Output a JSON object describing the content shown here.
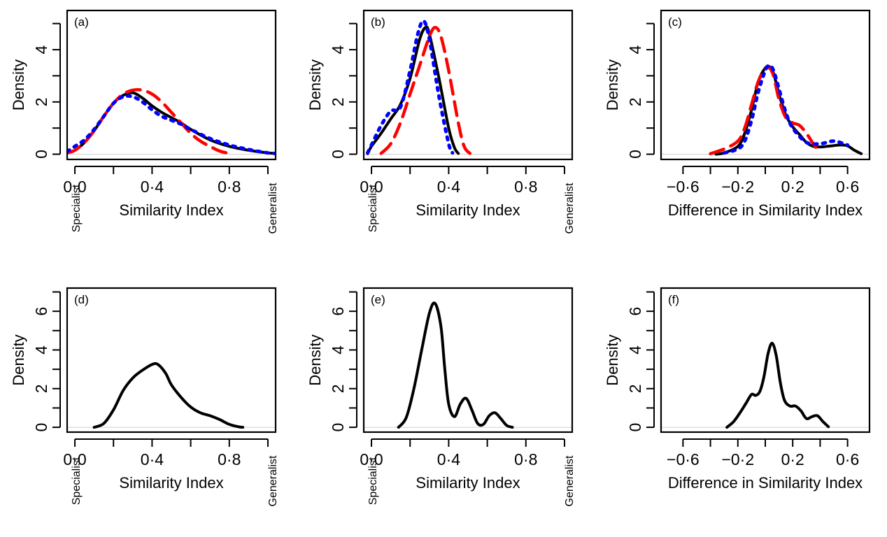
{
  "figure": {
    "background": "#ffffff"
  },
  "chart_data": [
    {
      "type": "line",
      "panel": "(a)",
      "xlabel": "Similarity Index",
      "ylabel": "Density",
      "left_end_label": "Specialist",
      "right_end_label": "Generalist",
      "xlim": [
        -0.04,
        1.04
      ],
      "ylim": [
        -0.2,
        5.5
      ],
      "x_ticks": [
        0.0,
        0.2,
        0.4,
        0.6,
        0.8,
        1.0
      ],
      "x_tick_labels": [
        "0·0",
        "",
        "0·4",
        "",
        "0·8",
        ""
      ],
      "y_ticks": [
        0,
        1,
        2,
        3,
        4,
        5
      ],
      "y_tick_labels": [
        "0",
        "",
        "2",
        "",
        "4",
        ""
      ],
      "series": [
        {
          "color": "#000000",
          "style": "solid",
          "x": [
            -0.04,
            0.0,
            0.05,
            0.1,
            0.15,
            0.2,
            0.25,
            0.3,
            0.35,
            0.4,
            0.45,
            0.5,
            0.55,
            0.6,
            0.7,
            0.8,
            0.9,
            1.0,
            1.04
          ],
          "y": [
            0.05,
            0.15,
            0.45,
            0.9,
            1.45,
            1.95,
            2.25,
            2.35,
            2.15,
            1.85,
            1.6,
            1.4,
            1.2,
            0.95,
            0.55,
            0.3,
            0.15,
            0.05,
            0.03
          ]
        },
        {
          "color": "#ff0000",
          "style": "dashed",
          "x": [
            -0.04,
            0.0,
            0.05,
            0.1,
            0.15,
            0.2,
            0.25,
            0.3,
            0.35,
            0.4,
            0.45,
            0.5,
            0.55,
            0.6,
            0.65,
            0.7,
            0.75,
            0.8
          ],
          "y": [
            0.05,
            0.15,
            0.45,
            0.9,
            1.45,
            1.95,
            2.3,
            2.45,
            2.45,
            2.3,
            2.0,
            1.6,
            1.2,
            0.8,
            0.5,
            0.3,
            0.12,
            0.03
          ]
        },
        {
          "color": "#0000ff",
          "style": "dotted",
          "x": [
            -0.04,
            0.0,
            0.05,
            0.1,
            0.15,
            0.2,
            0.25,
            0.3,
            0.35,
            0.4,
            0.45,
            0.5,
            0.55,
            0.6,
            0.7,
            0.8,
            0.9,
            1.0,
            1.04
          ],
          "y": [
            0.1,
            0.3,
            0.55,
            0.95,
            1.45,
            1.95,
            2.2,
            2.2,
            2.0,
            1.7,
            1.45,
            1.3,
            1.15,
            0.95,
            0.6,
            0.35,
            0.18,
            0.05,
            0.03
          ]
        }
      ]
    },
    {
      "type": "line",
      "panel": "(b)",
      "xlabel": "Similarity Index",
      "ylabel": "Density",
      "left_end_label": "Specialist",
      "right_end_label": "Generalist",
      "xlim": [
        -0.04,
        1.04
      ],
      "ylim": [
        -0.2,
        5.5
      ],
      "x_ticks": [
        0.0,
        0.2,
        0.4,
        0.6,
        0.8,
        1.0
      ],
      "x_tick_labels": [
        "0·0",
        "",
        "0·4",
        "",
        "0·8",
        ""
      ],
      "y_ticks": [
        0,
        1,
        2,
        3,
        4,
        5
      ],
      "y_tick_labels": [
        "0",
        "",
        "2",
        "",
        "4",
        ""
      ],
      "series": [
        {
          "color": "#000000",
          "style": "solid",
          "x": [
            -0.02,
            0.0,
            0.05,
            0.1,
            0.15,
            0.2,
            0.25,
            0.28,
            0.3,
            0.35,
            0.4,
            0.43,
            0.45
          ],
          "y": [
            0.02,
            0.3,
            0.8,
            1.35,
            1.9,
            2.9,
            4.4,
            4.85,
            4.6,
            2.9,
            1.0,
            0.25,
            0.03
          ]
        },
        {
          "color": "#ff0000",
          "style": "dashed",
          "x": [
            0.05,
            0.1,
            0.15,
            0.2,
            0.25,
            0.3,
            0.33,
            0.36,
            0.4,
            0.45,
            0.48,
            0.51
          ],
          "y": [
            0.03,
            0.4,
            1.2,
            2.3,
            3.4,
            4.5,
            4.85,
            4.5,
            3.2,
            1.2,
            0.3,
            0.03
          ]
        },
        {
          "color": "#0000ff",
          "style": "dotted",
          "x": [
            -0.02,
            0.0,
            0.05,
            0.1,
            0.15,
            0.2,
            0.24,
            0.27,
            0.3,
            0.35,
            0.4,
            0.42
          ],
          "y": [
            0.05,
            0.35,
            1.1,
            1.65,
            1.8,
            3.2,
            4.6,
            5.1,
            4.4,
            2.2,
            0.4,
            0.05
          ]
        }
      ]
    },
    {
      "type": "line",
      "panel": "(c)",
      "xlabel": "Difference in Similarity Index",
      "ylabel": "Density",
      "xlim": [
        -0.76,
        0.76
      ],
      "ylim": [
        -0.2,
        5.5
      ],
      "x_ticks": [
        -0.6,
        -0.4,
        -0.2,
        0.0,
        0.2,
        0.4,
        0.6
      ],
      "x_tick_labels": [
        "−0·6",
        "",
        "−0·2",
        "",
        "0·2",
        "",
        "0·6"
      ],
      "y_ticks": [
        0,
        1,
        2,
        3,
        4,
        5
      ],
      "y_tick_labels": [
        "0",
        "",
        "2",
        "",
        "4",
        ""
      ],
      "series": [
        {
          "color": "#000000",
          "style": "solid",
          "x": [
            -0.36,
            -0.3,
            -0.2,
            -0.15,
            -0.1,
            -0.05,
            0.0,
            0.03,
            0.06,
            0.1,
            0.15,
            0.2,
            0.25,
            0.3,
            0.35,
            0.4,
            0.45,
            0.5,
            0.55,
            0.6,
            0.65,
            0.7
          ],
          "y": [
            0.0,
            0.05,
            0.3,
            0.8,
            1.7,
            2.8,
            3.3,
            3.35,
            3.1,
            2.3,
            1.5,
            1.05,
            0.75,
            0.45,
            0.3,
            0.28,
            0.3,
            0.33,
            0.35,
            0.32,
            0.15,
            0.02
          ]
        },
        {
          "color": "#ff0000",
          "style": "dashed",
          "x": [
            -0.4,
            -0.3,
            -0.2,
            -0.15,
            -0.1,
            -0.05,
            0.0,
            0.03,
            0.06,
            0.1,
            0.15,
            0.2,
            0.25,
            0.3,
            0.35,
            0.4
          ],
          "y": [
            0.02,
            0.2,
            0.5,
            1.0,
            1.9,
            2.8,
            3.25,
            3.3,
            3.0,
            2.1,
            1.4,
            1.2,
            1.1,
            0.8,
            0.4,
            0.05
          ]
        },
        {
          "color": "#0000ff",
          "style": "dotted",
          "x": [
            -0.3,
            -0.2,
            -0.15,
            -0.1,
            -0.05,
            0.0,
            0.03,
            0.06,
            0.1,
            0.15,
            0.2,
            0.3,
            0.4,
            0.5,
            0.6
          ],
          "y": [
            0.05,
            0.2,
            0.5,
            1.3,
            2.4,
            3.2,
            3.4,
            3.2,
            2.5,
            1.6,
            1.0,
            0.45,
            0.4,
            0.5,
            0.35
          ]
        }
      ]
    },
    {
      "type": "line",
      "panel": "(d)",
      "xlabel": "Similarity Index",
      "ylabel": "Density",
      "left_end_label": "Specialist",
      "right_end_label": "Generalist",
      "xlim": [
        -0.04,
        1.04
      ],
      "ylim": [
        -0.25,
        7.2
      ],
      "x_ticks": [
        0.0,
        0.2,
        0.4,
        0.6,
        0.8,
        1.0
      ],
      "x_tick_labels": [
        "0·0",
        "",
        "0·4",
        "",
        "0·8",
        ""
      ],
      "y_ticks": [
        0,
        1,
        2,
        3,
        4,
        5,
        6,
        7
      ],
      "y_tick_labels": [
        "0",
        "",
        "2",
        "",
        "4",
        "",
        "6",
        ""
      ],
      "series": [
        {
          "color": "#000000",
          "style": "solid",
          "x": [
            0.1,
            0.15,
            0.2,
            0.25,
            0.3,
            0.35,
            0.4,
            0.43,
            0.47,
            0.5,
            0.55,
            0.6,
            0.65,
            0.7,
            0.75,
            0.8,
            0.85,
            0.87
          ],
          "y": [
            0.0,
            0.2,
            0.9,
            1.9,
            2.55,
            2.95,
            3.25,
            3.25,
            2.8,
            2.2,
            1.55,
            1.05,
            0.75,
            0.6,
            0.4,
            0.15,
            0.02,
            0.0
          ]
        }
      ]
    },
    {
      "type": "line",
      "panel": "(e)",
      "xlabel": "Similarity Index",
      "ylabel": "Density",
      "left_end_label": "Specialist",
      "right_end_label": "Generalist",
      "xlim": [
        -0.04,
        1.04
      ],
      "ylim": [
        -0.25,
        7.2
      ],
      "x_ticks": [
        0.0,
        0.2,
        0.4,
        0.6,
        0.8,
        1.0
      ],
      "x_tick_labels": [
        "0·0",
        "",
        "0·4",
        "",
        "0·8",
        ""
      ],
      "y_ticks": [
        0,
        1,
        2,
        3,
        4,
        5,
        6,
        7
      ],
      "y_tick_labels": [
        "0",
        "",
        "2",
        "",
        "4",
        "",
        "6",
        ""
      ],
      "series": [
        {
          "color": "#000000",
          "style": "solid",
          "x": [
            0.14,
            0.18,
            0.22,
            0.26,
            0.3,
            0.33,
            0.36,
            0.38,
            0.4,
            0.43,
            0.46,
            0.49,
            0.52,
            0.55,
            0.58,
            0.61,
            0.64,
            0.67,
            0.7,
            0.73
          ],
          "y": [
            0.0,
            0.5,
            2.0,
            4.0,
            5.9,
            6.4,
            5.2,
            3.0,
            1.2,
            0.55,
            1.2,
            1.5,
            0.9,
            0.2,
            0.15,
            0.6,
            0.75,
            0.45,
            0.1,
            0.0
          ]
        }
      ]
    },
    {
      "type": "line",
      "panel": "(f)",
      "xlabel": "Difference in Similarity Index",
      "ylabel": "Density",
      "xlim": [
        -0.76,
        0.76
      ],
      "ylim": [
        -0.25,
        7.2
      ],
      "x_ticks": [
        -0.6,
        -0.4,
        -0.2,
        0.0,
        0.2,
        0.4,
        0.6
      ],
      "x_tick_labels": [
        "−0·6",
        "",
        "−0·2",
        "",
        "0·2",
        "",
        "0·6"
      ],
      "y_ticks": [
        0,
        1,
        2,
        3,
        4,
        5,
        6,
        7
      ],
      "y_tick_labels": [
        "0",
        "",
        "2",
        "",
        "4",
        "",
        "6",
        ""
      ],
      "series": [
        {
          "color": "#000000",
          "style": "solid",
          "x": [
            -0.28,
            -0.23,
            -0.18,
            -0.14,
            -0.1,
            -0.07,
            -0.04,
            -0.01,
            0.02,
            0.05,
            0.08,
            0.11,
            0.14,
            0.18,
            0.22,
            0.26,
            0.3,
            0.34,
            0.38,
            0.42,
            0.46
          ],
          "y": [
            0.0,
            0.3,
            0.8,
            1.25,
            1.7,
            1.65,
            1.85,
            2.6,
            3.8,
            4.35,
            3.7,
            2.3,
            1.4,
            1.1,
            1.1,
            0.85,
            0.45,
            0.55,
            0.6,
            0.3,
            0.03
          ]
        }
      ]
    }
  ]
}
